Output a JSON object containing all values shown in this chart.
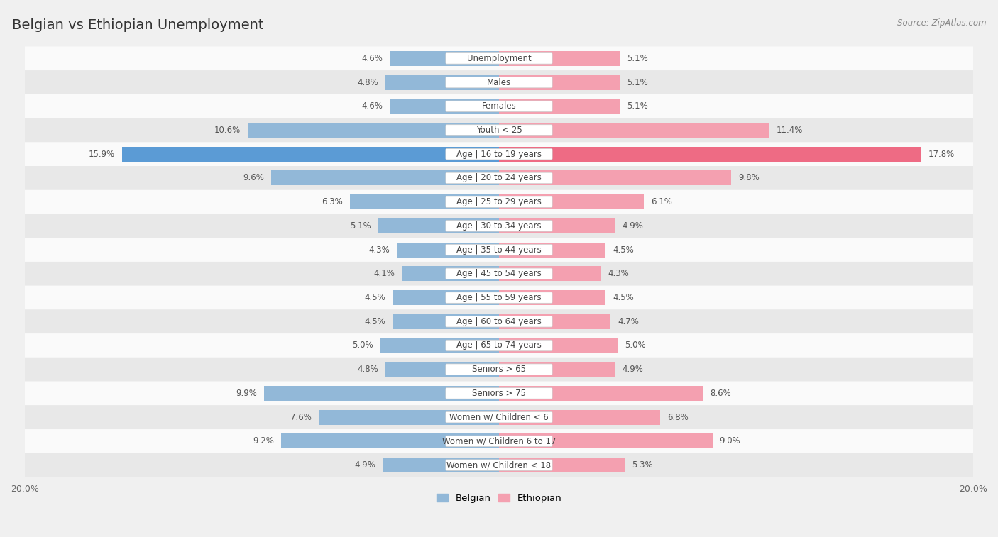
{
  "title": "Belgian vs Ethiopian Unemployment",
  "source": "Source: ZipAtlas.com",
  "categories": [
    "Unemployment",
    "Males",
    "Females",
    "Youth < 25",
    "Age | 16 to 19 years",
    "Age | 20 to 24 years",
    "Age | 25 to 29 years",
    "Age | 30 to 34 years",
    "Age | 35 to 44 years",
    "Age | 45 to 54 years",
    "Age | 55 to 59 years",
    "Age | 60 to 64 years",
    "Age | 65 to 74 years",
    "Seniors > 65",
    "Seniors > 75",
    "Women w/ Children < 6",
    "Women w/ Children 6 to 17",
    "Women w/ Children < 18"
  ],
  "belgian": [
    4.6,
    4.8,
    4.6,
    10.6,
    15.9,
    9.6,
    6.3,
    5.1,
    4.3,
    4.1,
    4.5,
    4.5,
    5.0,
    4.8,
    9.9,
    7.6,
    9.2,
    4.9
  ],
  "ethiopian": [
    5.1,
    5.1,
    5.1,
    11.4,
    17.8,
    9.8,
    6.1,
    4.9,
    4.5,
    4.3,
    4.5,
    4.7,
    5.0,
    4.9,
    8.6,
    6.8,
    9.0,
    5.3
  ],
  "belgian_color": "#92b8d8",
  "ethiopian_color": "#f4a0b0",
  "belgian_color_highlight": "#5b9bd5",
  "ethiopian_color_highlight": "#ee6b84",
  "bg_color": "#f0f0f0",
  "row_bg_light": "#fafafa",
  "row_bg_dark": "#e8e8e8",
  "max_val": 20.0,
  "bar_height": 0.62,
  "legend_belgian": "Belgian",
  "legend_ethiopian": "Ethiopian",
  "highlight_row": 4,
  "title_fontsize": 14,
  "label_fontsize": 8.5,
  "value_fontsize": 8.5
}
